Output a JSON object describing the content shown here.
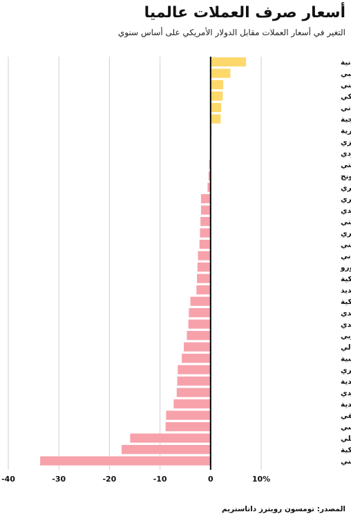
{
  "chart_data": {
    "type": "bar",
    "orientation": "horizontal",
    "title": "أسعار صرف العملات عالميا",
    "subtitle": "التغير في أسعار العملات مقابل الدولار الأمريكي على أساس سنوي",
    "source": "المصدر: تومسون رويترز داتاستريم",
    "categories": [
      "الهريفنا الأوكرانية",
      "البيزو الكولومبي",
      "الشلن الكيني",
      "البيزو المكسيكي",
      "الين الياباني",
      "الكرونة النرويجية",
      "النايرا النيجيرية",
      "الرنجيت الماليزي",
      "الريال السعودي",
      "الدينار الكويتي",
      "دولار هونج كونج",
      "الجنيه المصري",
      "الفرنك السويسري",
      "البات التايلاندي",
      "اليوان الصيني",
      "الدولار السنغافوري",
      "الجنيه الإسترليني",
      "الليو الروماني",
      "اليورو",
      "الكرونة الدنمركية",
      "الدولار التايواني الجديد",
      "الكرونة الشيكية",
      "الدولار الكندي",
      "الدولار النيوزيلندي",
      "الوون الكوري الجنوبي",
      "الدولار الأسترالي",
      "الروبية الإندونيسية",
      "الفورينت المجري",
      "الكرونة السويدية",
      "الزلوتي البولندي",
      "الروبية الهندية",
      "الراند الجنوب أفريقي",
      "الروبل الروسي",
      "الريال البرازيلي",
      "الليرة التركية",
      "البيزو الأرجنتيني"
    ],
    "values": [
      7.0,
      3.9,
      2.5,
      2.4,
      2.1,
      2.0,
      0.2,
      0.1,
      0.0,
      -0.3,
      -0.4,
      -0.6,
      -1.9,
      -1.9,
      -2.0,
      -2.1,
      -2.2,
      -2.5,
      -2.6,
      -2.7,
      -2.8,
      -4.0,
      -4.3,
      -4.4,
      -4.7,
      -5.3,
      -5.7,
      -6.5,
      -6.6,
      -6.7,
      -7.3,
      -8.8,
      -8.9,
      -15.9,
      -17.6,
      -33.7
    ],
    "positive_color": "#fdd86b",
    "negative_color": "#f7a2ab",
    "xlim": [
      -40,
      10
    ],
    "x_ticks": [
      -40,
      -30,
      -20,
      -10,
      0,
      10
    ],
    "x_tick_labels": [
      "-40",
      "-30",
      "-20",
      "-10",
      "0",
      "10%"
    ],
    "grid": true
  }
}
